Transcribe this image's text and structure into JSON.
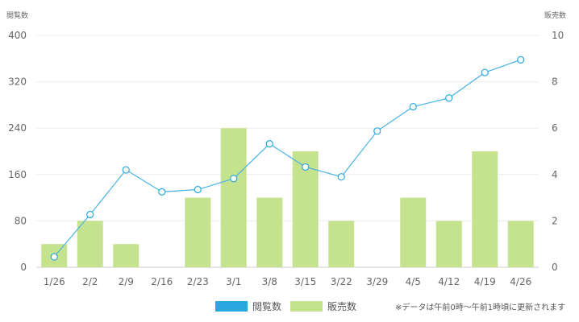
{
  "chart_data": {
    "type": "bar",
    "categories": [
      "1/26",
      "2/2",
      "2/9",
      "2/16",
      "2/23",
      "3/1",
      "3/8",
      "3/15",
      "3/22",
      "3/29",
      "4/5",
      "4/12",
      "4/19",
      "4/26"
    ],
    "series": [
      {
        "name": "閲覧数",
        "type": "line",
        "axis": "left",
        "color": "#29a8e0",
        "values": [
          18,
          91,
          168,
          130,
          134,
          153,
          213,
          173,
          156,
          235,
          277,
          292,
          336,
          358
        ]
      },
      {
        "name": "販売数",
        "type": "bar",
        "axis": "right",
        "color": "#c5e28f",
        "values": [
          1,
          2,
          1,
          0,
          3,
          6,
          3,
          5,
          2,
          0,
          3,
          2,
          5,
          2
        ]
      }
    ],
    "y_left": {
      "label": "閲覧数",
      "ylim": [
        0,
        400
      ],
      "ticks": [
        "0",
        "80",
        "160",
        "240",
        "320",
        "400"
      ]
    },
    "y_right": {
      "label": "販売数",
      "ylim": [
        0,
        10
      ],
      "ticks": [
        "0",
        "2",
        "4",
        "6",
        "8",
        "10"
      ]
    },
    "grid": true,
    "legend": "bottom",
    "note": "※データは午前0時～午前1時頃に更新されます"
  }
}
